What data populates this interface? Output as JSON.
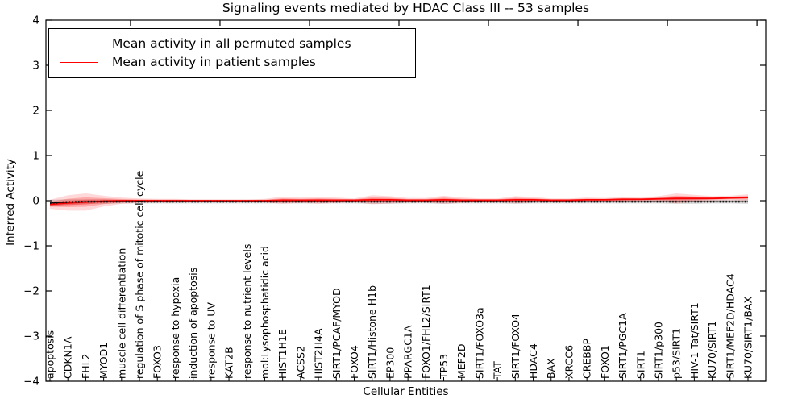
{
  "figure": {
    "title": "Signaling events mediated by HDAC Class III -- 53 samples",
    "xlabel": "Cellular Entities",
    "ylabel": "Inferred Activity"
  },
  "legend": {
    "entries": [
      {
        "label": "Mean activity in all permuted samples",
        "color": "#000000"
      },
      {
        "label": "Mean activity in patient samples",
        "color": "#ff0000"
      }
    ]
  },
  "chart_data": {
    "type": "line",
    "title": "Signaling events mediated by HDAC Class III -- 53 samples",
    "xlabel": "Cellular Entities",
    "ylabel": "Inferred Activity",
    "ylim": [
      -4,
      4
    ],
    "ytick_values": [
      4,
      3,
      2,
      1,
      0,
      -1,
      -2,
      -3,
      -4
    ],
    "ytick_labels": [
      "4",
      "3",
      "2",
      "1",
      "0",
      "−1",
      "−2",
      "−3",
      "−4"
    ],
    "grid": false,
    "legend_position": "upper left",
    "categories": [
      "apoptosis",
      "CDKN1A",
      "FHL2",
      "MYOD1",
      "muscle cell differentiation",
      "regulation of S phase of mitotic cell cycle",
      "FOXO3",
      "response to hypoxia",
      "induction of apoptosis",
      "response to UV",
      "KAT2B",
      "response to nutrient levels",
      "mol:Lysophosphatidic acid",
      "HIST1H1E",
      "ACSS2",
      "HIST2H4A",
      "SIRT1/PCAF/MYOD",
      "FOXO4",
      "SIRT1/Histone H1b",
      "EP300",
      "PPARGC1A",
      "FOXO1/FHL2/SIRT1",
      "TP53",
      "MEF2D",
      "SIRT1/FOXO3a",
      "TAT",
      "SIRT1/FOXO4",
      "HDAC4",
      "BAX",
      "XRCC6",
      "CREBBP",
      "FOXO1",
      "SIRT1/PGC1A",
      "SIRT1",
      "SIRT1/p300",
      "p53/SIRT1",
      "HIV-1 Tat/SIRT1",
      "KU70/SIRT1",
      "SIRT1/MEF2D/HDAC4",
      "KU70/SIRT1/BAX"
    ],
    "series": [
      {
        "name": "Mean activity in all permuted samples",
        "color": "#000000",
        "style": "line-with-dot-markers",
        "values": [
          -0.05,
          -0.03,
          -0.02,
          -0.02,
          -0.02,
          -0.02,
          -0.02,
          -0.02,
          -0.02,
          -0.02,
          -0.02,
          -0.02,
          -0.02,
          -0.02,
          -0.02,
          -0.02,
          -0.02,
          -0.02,
          -0.02,
          -0.02,
          -0.02,
          -0.02,
          -0.02,
          -0.02,
          -0.02,
          -0.02,
          -0.02,
          -0.02,
          -0.02,
          -0.02,
          -0.02,
          -0.02,
          -0.02,
          -0.02,
          -0.02,
          -0.02,
          -0.02,
          -0.02,
          -0.02,
          -0.02
        ],
        "band_halfwidth": [
          0.07,
          0.06,
          0.05,
          0.05,
          0.04,
          0.04,
          0.04,
          0.04,
          0.04,
          0.04,
          0.04,
          0.04,
          0.04,
          0.04,
          0.04,
          0.04,
          0.04,
          0.04,
          0.05,
          0.05,
          0.04,
          0.04,
          0.05,
          0.04,
          0.04,
          0.04,
          0.05,
          0.04,
          0.04,
          0.04,
          0.04,
          0.04,
          0.04,
          0.04,
          0.04,
          0.05,
          0.05,
          0.04,
          0.04,
          0.05
        ],
        "band_color": "#808080"
      },
      {
        "name": "Mean activity in patient samples",
        "color": "#ff0000",
        "style": "line",
        "values": [
          -0.08,
          -0.05,
          -0.03,
          -0.01,
          0.0,
          0.0,
          0.0,
          0.0,
          0.0,
          0.0,
          0.0,
          0.0,
          0.0,
          0.01,
          0.01,
          0.01,
          0.01,
          0.01,
          0.02,
          0.02,
          0.01,
          0.01,
          0.02,
          0.01,
          0.01,
          0.01,
          0.02,
          0.02,
          0.01,
          0.01,
          0.02,
          0.02,
          0.03,
          0.03,
          0.04,
          0.05,
          0.05,
          0.05,
          0.06,
          0.07
        ],
        "band_halfwidth": [
          0.1,
          0.17,
          0.19,
          0.12,
          0.07,
          0.05,
          0.04,
          0.04,
          0.03,
          0.03,
          0.03,
          0.03,
          0.04,
          0.08,
          0.06,
          0.08,
          0.06,
          0.04,
          0.1,
          0.08,
          0.05,
          0.05,
          0.09,
          0.06,
          0.04,
          0.04,
          0.08,
          0.06,
          0.04,
          0.04,
          0.05,
          0.04,
          0.05,
          0.04,
          0.06,
          0.11,
          0.08,
          0.05,
          0.05,
          0.07
        ],
        "band_color": "#ff0000"
      }
    ]
  }
}
